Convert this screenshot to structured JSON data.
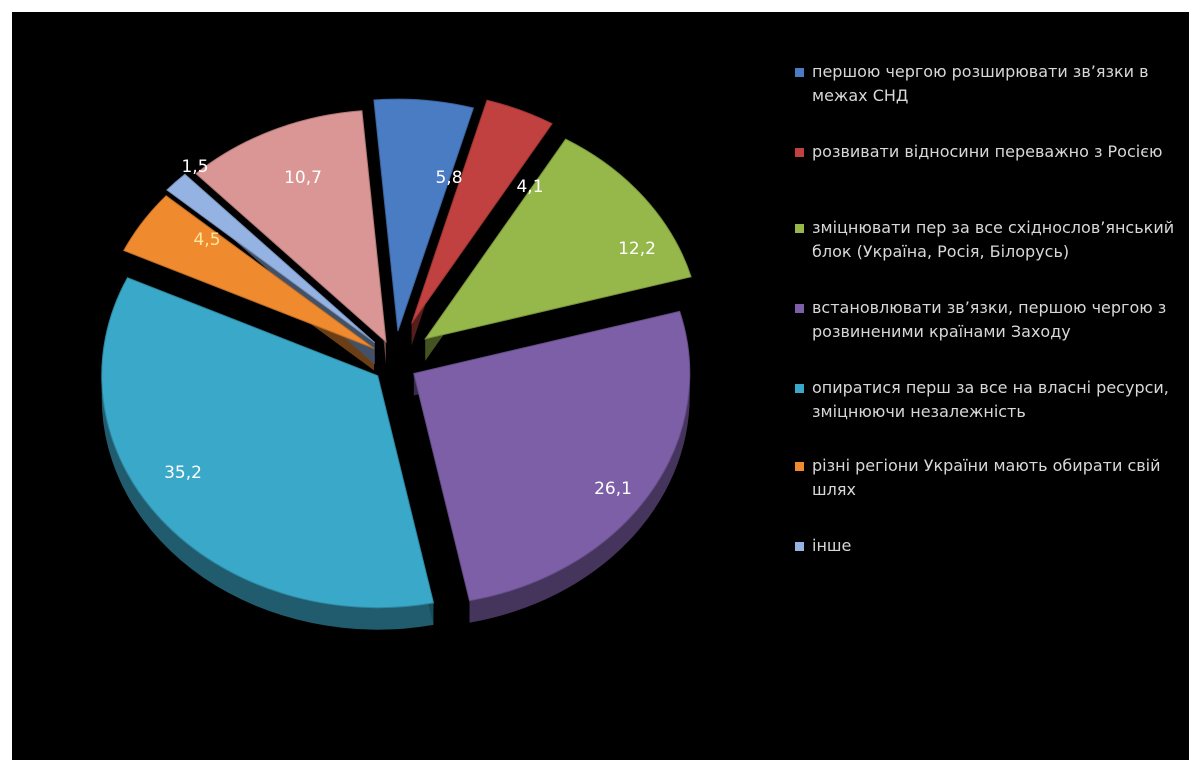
{
  "chart_data": {
    "type": "pie",
    "title": "",
    "background": "#000000",
    "legend_position": "right",
    "label_color": "#ffffff",
    "slices": [
      {
        "label": "першою чергою розширювати зв’язки в межах СНД",
        "value": 5.8,
        "value_label": "5,8",
        "color": "#4a7cc4"
      },
      {
        "label": "розвивати відносини переважно з Росією",
        "value": 4.1,
        "value_label": "4,1",
        "color": "#c0413f"
      },
      {
        "label": "зміцнювати пер за все східнослов’янський блок (Україна, Росія, Білорусь)",
        "value": 12.2,
        "value_label": "12,2",
        "color": "#96b84a"
      },
      {
        "label": "встановлювати зв’язки, першою чергою з розвиненими країнами Заходу",
        "value": 26.1,
        "value_label": "26,1",
        "color": "#7d5fa8"
      },
      {
        "label": "опиратися перш за все на власні ресурси, зміцнюючи незалежність",
        "value": 35.2,
        "value_label": "35,2",
        "color": "#3aa8c8"
      },
      {
        "label": "різні регіони України мають обирати свій шлях",
        "value": 4.5,
        "value_label": "4,5",
        "color": "#f08a2e"
      },
      {
        "label": "інше",
        "value": 1.5,
        "value_label": "1,5",
        "color": "#95b3e2"
      },
      {
        "label": "",
        "value": 10.7,
        "value_label": "10,7",
        "color": "#d99694"
      }
    ]
  }
}
